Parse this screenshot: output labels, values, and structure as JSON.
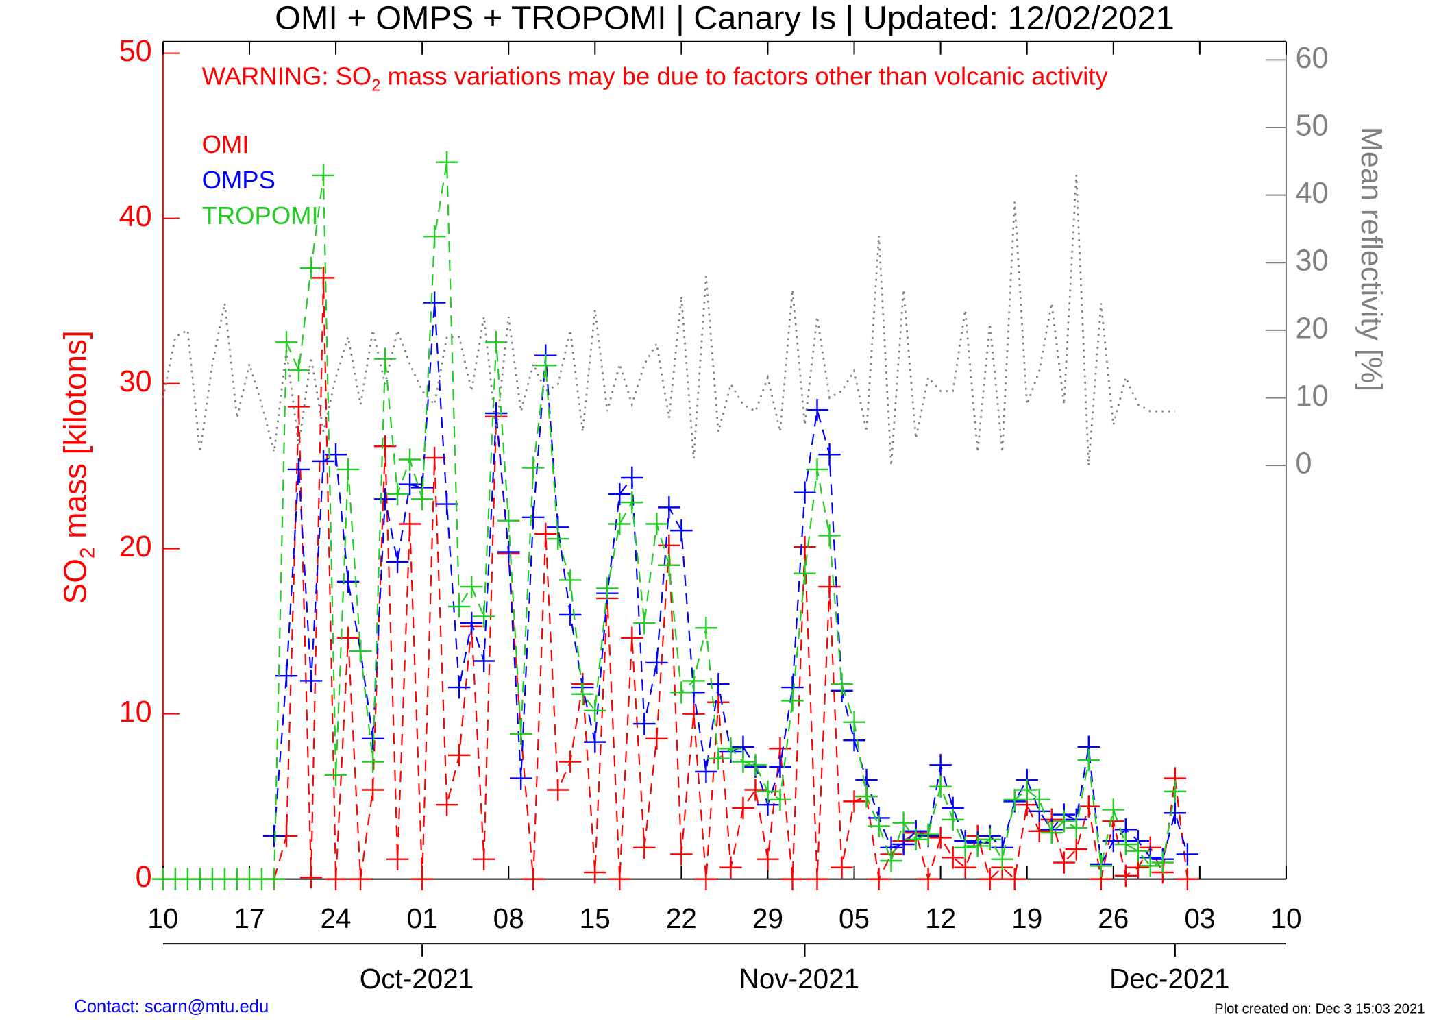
{
  "chart_data": {
    "type": "line",
    "title": "OMI + OMPS + TROPOMI | Canary Is | Updated: 12/02/2021",
    "annotation": [
      "WARNING: SO",
      "2",
      " mass variations may be due to factors other than volcanic activity"
    ],
    "ylabel": [
      "SO",
      "2",
      " mass [kilotons]"
    ],
    "y2label": "Mean reflectivity [%]",
    "footer_left": "Contact: scarn@mtu.edu",
    "footer_right": "Plot created on: Dec  3 15:03 2021",
    "legend": "upper left",
    "x": [
      "2021-09-10",
      "2021-09-11",
      "2021-09-12",
      "2021-09-13",
      "2021-09-14",
      "2021-09-15",
      "2021-09-16",
      "2021-09-17",
      "2021-09-18",
      "2021-09-19",
      "2021-09-20",
      "2021-09-21",
      "2021-09-22",
      "2021-09-23",
      "2021-09-24",
      "2021-09-25",
      "2021-09-26",
      "2021-09-27",
      "2021-09-28",
      "2021-09-29",
      "2021-09-30",
      "2021-10-01",
      "2021-10-02",
      "2021-10-03",
      "2021-10-04",
      "2021-10-05",
      "2021-10-06",
      "2021-10-07",
      "2021-10-08",
      "2021-10-09",
      "2021-10-10",
      "2021-10-11",
      "2021-10-12",
      "2021-10-13",
      "2021-10-14",
      "2021-10-15",
      "2021-10-16",
      "2021-10-17",
      "2021-10-18",
      "2021-10-19",
      "2021-10-20",
      "2021-10-21",
      "2021-10-22",
      "2021-10-23",
      "2021-10-24",
      "2021-10-25",
      "2021-10-26",
      "2021-10-27",
      "2021-10-28",
      "2021-10-29",
      "2021-10-30",
      "2021-10-31",
      "2021-11-01",
      "2021-11-02",
      "2021-11-03",
      "2021-11-04",
      "2021-11-05",
      "2021-11-06",
      "2021-11-07",
      "2021-11-08",
      "2021-11-09",
      "2021-11-10",
      "2021-11-11",
      "2021-11-12",
      "2021-11-13",
      "2021-11-14",
      "2021-11-15",
      "2021-11-16",
      "2021-11-17",
      "2021-11-18",
      "2021-11-19",
      "2021-11-20",
      "2021-11-21",
      "2021-11-22",
      "2021-11-23",
      "2021-11-24",
      "2021-11-25",
      "2021-11-26",
      "2021-11-27",
      "2021-11-28",
      "2021-11-29",
      "2021-11-30",
      "2021-12-01",
      "2021-12-02"
    ],
    "series": [
      {
        "name": "OMI",
        "color": "#ff0000",
        "values": [
          null,
          null,
          null,
          null,
          null,
          null,
          null,
          null,
          null,
          0,
          2.6,
          28.6,
          0.1,
          36.4,
          0,
          14.6,
          0,
          5.4,
          26.2,
          1.2,
          21.5,
          0,
          25.5,
          4.5,
          7.5,
          15.3,
          1.2,
          28.0,
          19.7,
          8.8,
          0,
          20.9,
          5.4,
          7.1,
          11.8,
          0.4,
          17.0,
          0,
          14.6,
          1.9,
          8.5,
          20.2,
          1.5,
          10.0,
          0,
          10.7,
          0.7,
          4.3,
          5.4,
          1.2,
          7.9,
          0,
          20.1,
          0,
          17.7,
          0.7,
          4.7,
          5.0,
          0,
          1.5,
          2.3,
          2.8,
          0,
          2.5,
          1.3,
          0.7,
          2.6,
          0,
          0.7,
          0,
          4.5,
          2.9,
          3.6,
          1.0,
          1.8,
          4.4,
          0,
          3.5,
          0.2,
          0.7,
          1.9,
          0.4,
          6.1,
          0
        ]
      },
      {
        "name": "OMPS",
        "color": "#0000ff",
        "values": [
          null,
          null,
          null,
          null,
          null,
          null,
          null,
          null,
          null,
          2.6,
          12.3,
          24.8,
          12.0,
          25.3,
          25.7,
          18.0,
          13.8,
          8.5,
          23.0,
          19.2,
          23.9,
          23.7,
          34.9,
          22.7,
          11.6,
          15.5,
          13.2,
          28.2,
          19.8,
          6.1,
          21.9,
          31.7,
          21.3,
          16.0,
          11.6,
          8.3,
          17.3,
          23.3,
          24.3,
          9.4,
          13.1,
          22.5,
          21.1,
          11.3,
          6.5,
          11.8,
          7.7,
          8.0,
          6.8,
          4.5,
          6.8,
          11.6,
          23.4,
          28.4,
          25.7,
          11.4,
          8.4,
          6.0,
          3.7,
          1.9,
          2.1,
          2.9,
          2.6,
          6.9,
          4.3,
          2.3,
          2.2,
          2.6,
          1.9,
          4.7,
          6.0,
          4.1,
          3.0,
          3.9,
          3.6,
          8.0,
          0.9,
          2.3,
          3.0,
          2.3,
          1.3,
          1.2,
          4.0,
          1.5
        ]
      },
      {
        "name": "TROPOMI",
        "color": "#22cc22",
        "values": [
          0,
          0,
          0,
          0,
          0,
          0,
          0,
          0,
          0,
          0,
          32.5,
          30.8,
          37,
          42.6,
          6.3,
          24.8,
          13.8,
          7.1,
          31.5,
          23.3,
          25.4,
          23.0,
          38.9,
          43.4,
          16.5,
          17.7,
          15.9,
          32.5,
          21.7,
          8.8,
          24.9,
          31.1,
          20.6,
          18.1,
          11.2,
          10.2,
          17.6,
          21.5,
          22.8,
          15.5,
          21.5,
          19.0,
          11.3,
          12.0,
          15.2,
          7.3,
          7.9,
          7.1,
          6.9,
          5.3,
          4.8,
          10.8,
          18.5,
          24.8,
          20.8,
          11.8,
          9.5,
          5.0,
          3.2,
          1.1,
          3.4,
          2.4,
          2.7,
          5.6,
          3.6,
          1.9,
          2.0,
          2.4,
          1.2,
          4.8,
          5.4,
          4.8,
          2.8,
          3.5,
          3.1,
          7.2,
          0.8,
          4.2,
          2.1,
          1.7,
          0.8,
          1.0,
          5.3,
          null
        ]
      },
      {
        "color": "#808080",
        "axis": "y2",
        "style": "dotted",
        "values": [
          10,
          19,
          20,
          2,
          15,
          24,
          7,
          15,
          9,
          2,
          17,
          3,
          16,
          5,
          13,
          19,
          9,
          20,
          12,
          20,
          15,
          11,
          9,
          19,
          19,
          11,
          22,
          5,
          22,
          8,
          15,
          11,
          12,
          20,
          5,
          23,
          8,
          15,
          9,
          15,
          18,
          7,
          25,
          1,
          28,
          5,
          12,
          9,
          8,
          13,
          5,
          26,
          6,
          22,
          10,
          11,
          14,
          5,
          34,
          0,
          26,
          4,
          13,
          11,
          11,
          23,
          2,
          21,
          2,
          39,
          9,
          14,
          24,
          9,
          43,
          0,
          24,
          6,
          13,
          9,
          8,
          8,
          8,
          null
        ]
      }
    ],
    "xlim": [
      "2021-09-10",
      "2021-12-10"
    ],
    "xticks": [
      {
        "value": "2021-09-10",
        "label": "10"
      },
      {
        "value": "2021-09-17",
        "label": "17"
      },
      {
        "value": "2021-09-24",
        "label": "24"
      },
      {
        "value": "2021-10-01",
        "label": "01"
      },
      {
        "value": "2021-10-08",
        "label": "08"
      },
      {
        "value": "2021-10-15",
        "label": "15"
      },
      {
        "value": "2021-10-22",
        "label": "22"
      },
      {
        "value": "2021-10-29",
        "label": "29"
      },
      {
        "value": "2021-11-05",
        "label": "05"
      },
      {
        "value": "2021-11-12",
        "label": "12"
      },
      {
        "value": "2021-11-19",
        "label": "19"
      },
      {
        "value": "2021-11-26",
        "label": "26"
      },
      {
        "value": "2021-12-03",
        "label": "03"
      },
      {
        "value": "2021-12-10",
        "label": "10"
      }
    ],
    "month_ticks": [
      {
        "value": "2021-10-01",
        "label": "Oct-2021"
      },
      {
        "value": "2021-11-01",
        "label": "Nov-2021"
      },
      {
        "value": "2021-12-01",
        "label": "Dec-2021"
      }
    ],
    "ylim": [
      0,
      50.7
    ],
    "yticks": [
      0,
      10,
      20,
      30,
      40,
      50
    ],
    "y2lim": [
      -61.2,
      62.7
    ],
    "y2ticks": [
      0,
      10,
      20,
      30,
      40,
      50,
      60
    ]
  }
}
